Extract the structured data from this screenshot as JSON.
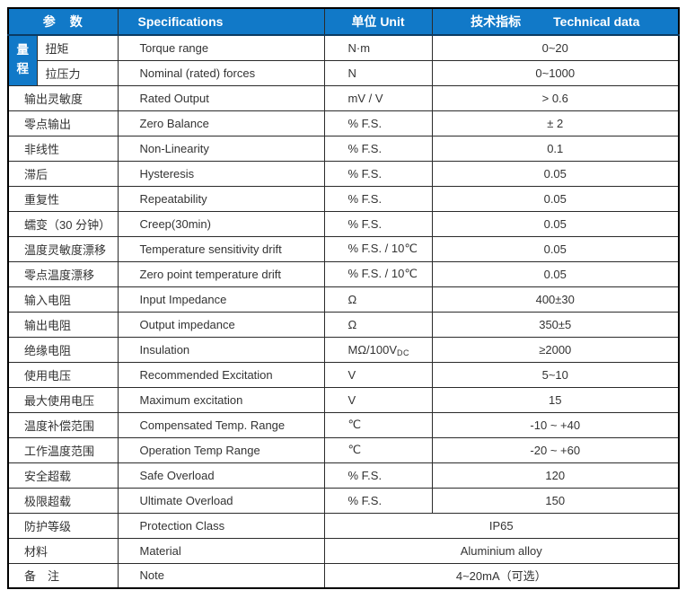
{
  "table": {
    "header": {
      "col_param": "参　数",
      "col_spec": "Specifications",
      "col_unit": "单位 Unit",
      "col_tech_cn": "技术指标",
      "col_tech_en": "Technical data"
    },
    "range_group_label": "量程",
    "rows": [
      {
        "param": "扭矩",
        "spec": "Torque range",
        "unit": "N·m",
        "value": "0~20"
      },
      {
        "param": "拉压力",
        "spec": "Nominal (rated) forces",
        "unit": "N",
        "value": "0~1000"
      },
      {
        "param": "输出灵敏度",
        "spec": "Rated Output",
        "unit": "mV / V",
        "value": "> 0.6"
      },
      {
        "param": "零点输出",
        "spec": "Zero Balance",
        "unit": "% F.S.",
        "value": "± 2"
      },
      {
        "param": "非线性",
        "spec": "Non-Linearity",
        "unit": "% F.S.",
        "value": "0.1"
      },
      {
        "param": "滞后",
        "spec": "Hysteresis",
        "unit": "% F.S.",
        "value": "0.05"
      },
      {
        "param": "重复性",
        "spec": "Repeatability",
        "unit": "% F.S.",
        "value": "0.05"
      },
      {
        "param": "蠕变（30 分钟）",
        "spec": "Creep(30min)",
        "unit": "% F.S.",
        "value": "0.05"
      },
      {
        "param": "温度灵敏度漂移",
        "spec": "Temperature sensitivity drift",
        "unit": "% F.S. / 10℃",
        "value": "0.05"
      },
      {
        "param": "零点温度漂移",
        "spec": "Zero point temperature drift",
        "unit": "% F.S. / 10℃",
        "value": "0.05"
      },
      {
        "param": "输入电阻",
        "spec": "Input Impedance",
        "unit": "Ω",
        "value": "400±30"
      },
      {
        "param": "输出电阻",
        "spec": "Output impedance",
        "unit": "Ω",
        "value": "350±5"
      },
      {
        "param": "绝缘电阻",
        "spec": "Insulation",
        "unit": "MΩ/100V",
        "unit_sub": "DC",
        "value": "≥2000"
      },
      {
        "param": "使用电压",
        "spec": "Recommended Excitation",
        "unit": "V",
        "value": "5~10"
      },
      {
        "param": "最大使用电压",
        "spec": "Maximum excitation",
        "unit": "V",
        "value": "15"
      },
      {
        "param": "温度补偿范围",
        "spec": "Compensated Temp. Range",
        "unit": "℃",
        "value": "-10 ~ +40"
      },
      {
        "param": "工作温度范围",
        "spec": "Operation Temp Range",
        "unit": "℃",
        "value": "-20 ~ +60"
      },
      {
        "param": "安全超载",
        "spec": "Safe Overload",
        "unit": "% F.S.",
        "value": "120"
      },
      {
        "param": "极限超载",
        "spec": "Ultimate Overload",
        "unit": "% F.S.",
        "value": "150"
      },
      {
        "param": "防护等级",
        "spec": "Protection Class",
        "merged_value": "IP65"
      },
      {
        "param": "材料",
        "spec": "Material",
        "merged_value": "Aluminium alloy"
      },
      {
        "param": "备　注",
        "spec": "Note",
        "merged_value": "4~20mA（可选）"
      }
    ]
  },
  "colors": {
    "header_bg": "#1179c8",
    "range_cell_bg": "#1179c8",
    "border": "#2b2b2b",
    "text": "#333333",
    "header_text": "#ffffff"
  }
}
